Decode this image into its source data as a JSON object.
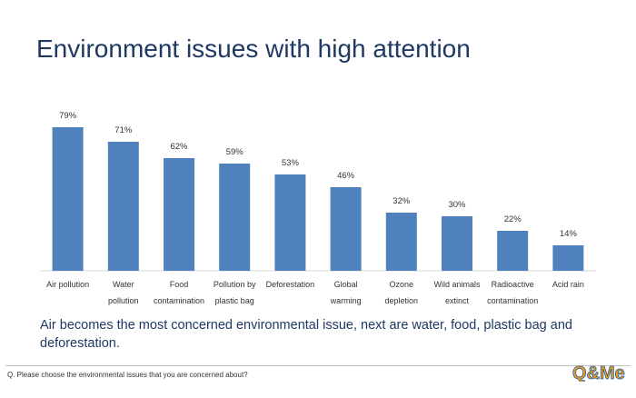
{
  "slide": {
    "title": "Environment issues with high attention",
    "summary": "Air becomes the most concerned environmental issue, next are water, food, plastic bag and deforestation.",
    "question": "Q. Please choose the environmental issues that you are concerned about?",
    "logo_text": "Q&Me"
  },
  "colors": {
    "bar": "#4f81bd",
    "title": "#1f3864",
    "logo_orange": "#f39c12",
    "logo_blue": "#1f5fa8"
  },
  "chart_data": {
    "type": "bar",
    "categories": [
      [
        "Air pollution"
      ],
      [
        "Water",
        "pollution"
      ],
      [
        "Food",
        "contamination"
      ],
      [
        "Pollution by",
        "plastic bag"
      ],
      [
        "Deforestation"
      ],
      [
        "Global",
        "warming"
      ],
      [
        "Ozone",
        "depletion"
      ],
      [
        "Wild animals",
        "extinct"
      ],
      [
        "Radioactive",
        "contamination"
      ],
      [
        "Acid rain"
      ]
    ],
    "values": [
      79,
      71,
      62,
      59,
      53,
      46,
      32,
      30,
      22,
      14
    ],
    "labels": [
      "79%",
      "71%",
      "62%",
      "59%",
      "53%",
      "46%",
      "32%",
      "30%",
      "22%",
      "14%"
    ],
    "ylim": [
      0,
      100
    ],
    "grid": false,
    "legend": false
  }
}
